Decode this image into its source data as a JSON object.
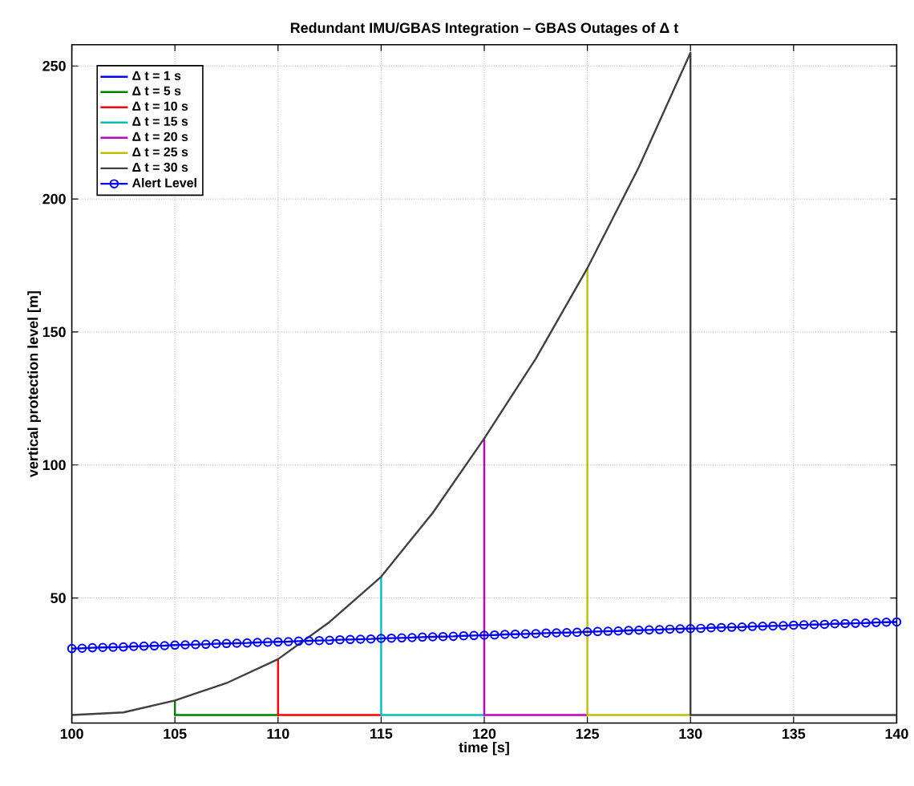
{
  "chart_data": {
    "type": "line",
    "title": "Redundant IMU/GBAS Integration – GBAS Outages of Δ t",
    "xlabel": "time [s]",
    "ylabel": "vertical protection level [m]",
    "xlim": [
      100,
      140
    ],
    "ylim": [
      3,
      258
    ],
    "xticks": [
      100,
      105,
      110,
      115,
      120,
      125,
      130,
      135,
      140
    ],
    "yticks": [
      50,
      100,
      150,
      200,
      250
    ],
    "grid": true,
    "legend": "top left",
    "line_style": "solid",
    "marker": "none",
    "series": [
      {
        "name": "Δ t = 1 s",
        "color": "#0000ff"
      },
      {
        "name": "Δ t = 5 s",
        "color": "#008000",
        "x": [
          105,
          105,
          110
        ],
        "values": [
          11.5,
          6,
          6
        ]
      },
      {
        "name": "Δ t = 10 s",
        "color": "#ff0000",
        "x": [
          110,
          110,
          115
        ],
        "values": [
          27,
          6,
          6
        ]
      },
      {
        "name": "Δ t = 15 s",
        "color": "#00bfbf",
        "x": [
          115,
          115,
          120
        ],
        "values": [
          58,
          6,
          6
        ]
      },
      {
        "name": "Δ t = 20 s",
        "color": "#bf00bf",
        "x": [
          120,
          120,
          125
        ],
        "values": [
          110,
          6,
          6
        ]
      },
      {
        "name": "Δ t = 25 s",
        "color": "#bfbf00",
        "x": [
          125,
          125,
          130
        ],
        "values": [
          174,
          6,
          6
        ]
      },
      {
        "name": "Δ t = 30 s",
        "color": "#404040",
        "x": [
          100,
          102.5,
          105,
          107.5,
          110,
          112.5,
          115,
          117.5,
          120,
          122.5,
          125,
          127.5,
          130,
          130,
          140
        ],
        "values": [
          6,
          7,
          11.5,
          18,
          27,
          41,
          58,
          82,
          110,
          140,
          174,
          212,
          255,
          6,
          6
        ]
      },
      {
        "name": "Alert Level",
        "color": "#0000ff",
        "marker": "circle",
        "x": [
          100,
          100.5,
          101,
          101.5,
          102,
          102.5,
          103,
          103.5,
          104,
          104.5,
          105,
          105.5,
          106,
          106.5,
          107,
          107.5,
          108,
          108.5,
          109,
          109.5,
          110,
          110.5,
          111,
          111.5,
          112,
          112.5,
          113,
          113.5,
          114,
          114.5,
          115,
          115.5,
          116,
          116.5,
          117,
          117.5,
          118,
          118.5,
          119,
          119.5,
          120,
          120.5,
          121,
          121.5,
          122,
          122.5,
          123,
          123.5,
          124,
          124.5,
          125,
          125.5,
          126,
          126.5,
          127,
          127.5,
          128,
          128.5,
          129,
          129.5,
          130,
          130.5,
          131,
          131.5,
          132,
          132.5,
          133,
          133.5,
          134,
          134.5,
          135,
          135.5,
          136,
          136.5,
          137,
          137.5,
          138,
          138.5,
          139,
          139.5,
          140
        ],
        "values": [
          31,
          31.1,
          31.3,
          31.4,
          31.5,
          31.6,
          31.8,
          31.9,
          32,
          32.1,
          32.3,
          32.4,
          32.5,
          32.6,
          32.8,
          32.9,
          33,
          33.1,
          33.3,
          33.4,
          33.5,
          33.6,
          33.8,
          33.9,
          34,
          34.1,
          34.3,
          34.4,
          34.5,
          34.6,
          34.8,
          34.9,
          35,
          35.1,
          35.3,
          35.4,
          35.5,
          35.6,
          35.8,
          35.9,
          36,
          36.1,
          36.3,
          36.4,
          36.5,
          36.6,
          36.8,
          36.9,
          37,
          37.1,
          37.3,
          37.4,
          37.5,
          37.6,
          37.8,
          37.9,
          38,
          38.1,
          38.3,
          38.4,
          38.5,
          38.6,
          38.8,
          38.9,
          39,
          39.1,
          39.3,
          39.4,
          39.5,
          39.6,
          39.8,
          39.9,
          40,
          40.1,
          40.3,
          40.4,
          40.5,
          40.6,
          40.8,
          40.9,
          41
        ]
      }
    ]
  }
}
